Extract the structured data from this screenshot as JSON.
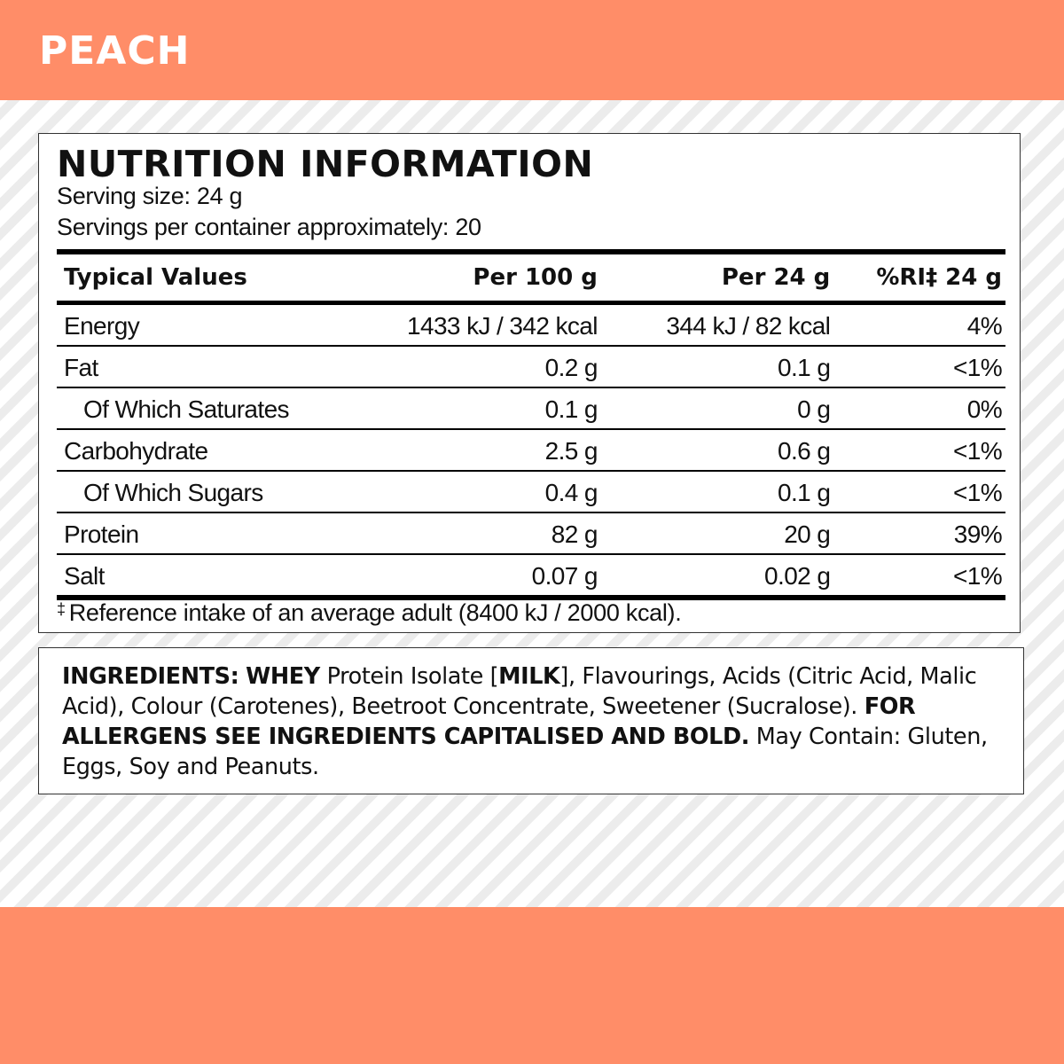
{
  "flavour": "PEACH",
  "colors": {
    "banner": "#ff8d68",
    "panel_background": "#ffffff",
    "text": "#111111"
  },
  "nutrition": {
    "heading": "NUTRITION INFORMATION",
    "serving_size": "Serving size: 24 g",
    "servings_per_container": "Servings per container approximately: 20",
    "columns": [
      "Typical Values",
      "Per 100 g",
      "Per 24 g",
      "%RI‡ 24 g"
    ],
    "rows": [
      {
        "name": "Energy",
        "per100": "1433 kJ / 342 kcal",
        "per24": "344 kJ / 82 kcal",
        "ri": "4%"
      },
      {
        "name": "Fat",
        "per100": "0.2 g",
        "per24": "0.1 g",
        "ri": "<1%"
      },
      {
        "name": "Of Which Saturates",
        "per100": "0.1 g",
        "per24": "0 g",
        "ri": "0%"
      },
      {
        "name": "Carbohydrate",
        "per100": "2.5 g",
        "per24": "0.6 g",
        "ri": "<1%"
      },
      {
        "name": "Of Which Sugars",
        "per100": "0.4 g",
        "per24": "0.1 g",
        "ri": "<1%"
      },
      {
        "name": "Protein",
        "per100": "82 g",
        "per24": "20 g",
        "ri": "39%"
      },
      {
        "name": "Salt",
        "per100": "0.07 g",
        "per24": "0.02 g",
        "ri": "<1%"
      }
    ],
    "footnote_symbol": "‡",
    "footnote": "Reference intake of an average adult (8400 kJ / 2000 kcal)."
  },
  "ingredients": {
    "label": "INGREDIENTS:",
    "segments": [
      {
        "text": "WHEY",
        "bold": true
      },
      {
        "text": " Protein Isolate [",
        "bold": false
      },
      {
        "text": "MILK",
        "bold": true
      },
      {
        "text": "], Flavourings, Acids (Citric Acid, Malic Acid), Colour (Carotenes), Beetroot Concentrate, Sweetener (Sucralose). ",
        "bold": false
      },
      {
        "text": "FOR ALLERGENS SEE INGREDIENTS CAPITALISED AND BOLD.",
        "bold": true
      },
      {
        "text": " May Contain: Gluten, Eggs, Soy and Peanuts.",
        "bold": false
      }
    ]
  }
}
